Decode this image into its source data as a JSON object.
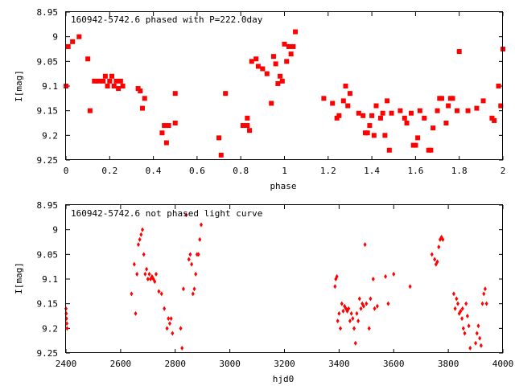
{
  "marker_color": "#ff0000",
  "chart_data": [
    {
      "type": "scatter",
      "title": "160942-5742.6 phased with P=222.0day",
      "xlabel": "phase",
      "ylabel": "I[mag]",
      "xlim": [
        0,
        2
      ],
      "ylim": [
        8.95,
        9.25
      ],
      "y_inverted": true,
      "xticks": [
        "0",
        "0.2",
        "0.4",
        "0.6",
        "0.8",
        "1",
        "1.2",
        "1.4",
        "1.6",
        "1.8",
        "2"
      ],
      "yticks": [
        "8.95",
        "9",
        "9.05",
        "9.1",
        "9.15",
        "9.2",
        "9.25"
      ],
      "marker": "filled square",
      "grid": false,
      "points": [
        [
          0.0,
          9.1
        ],
        [
          0.01,
          9.02
        ],
        [
          0.03,
          9.01
        ],
        [
          0.06,
          9.0
        ],
        [
          0.1,
          9.045
        ],
        [
          0.11,
          9.15
        ],
        [
          0.13,
          9.09
        ],
        [
          0.15,
          9.09
        ],
        [
          0.17,
          9.09
        ],
        [
          0.18,
          9.08
        ],
        [
          0.19,
          9.1
        ],
        [
          0.2,
          9.09
        ],
        [
          0.21,
          9.08
        ],
        [
          0.22,
          9.1
        ],
        [
          0.23,
          9.09
        ],
        [
          0.24,
          9.105
        ],
        [
          0.25,
          9.09
        ],
        [
          0.26,
          9.1
        ],
        [
          0.33,
          9.105
        ],
        [
          0.34,
          9.11
        ],
        [
          0.35,
          9.145
        ],
        [
          0.36,
          9.125
        ],
        [
          0.44,
          9.195
        ],
        [
          0.45,
          9.18
        ],
        [
          0.46,
          9.215
        ],
        [
          0.47,
          9.18
        ],
        [
          0.5,
          9.115
        ],
        [
          0.5,
          9.175
        ],
        [
          0.7,
          9.205
        ],
        [
          0.71,
          9.24
        ],
        [
          0.73,
          9.115
        ],
        [
          0.81,
          9.18
        ],
        [
          0.83,
          9.165
        ],
        [
          0.83,
          9.18
        ],
        [
          0.84,
          9.19
        ],
        [
          0.85,
          9.05
        ],
        [
          0.87,
          9.045
        ],
        [
          0.88,
          9.06
        ],
        [
          0.9,
          9.065
        ],
        [
          0.92,
          9.075
        ],
        [
          0.94,
          9.135
        ],
        [
          0.95,
          9.04
        ],
        [
          0.96,
          9.055
        ],
        [
          0.97,
          9.095
        ],
        [
          0.98,
          9.08
        ],
        [
          0.99,
          9.09
        ],
        [
          1.0,
          9.015
        ],
        [
          1.01,
          9.05
        ],
        [
          1.02,
          9.02
        ],
        [
          1.03,
          9.035
        ],
        [
          1.04,
          9.02
        ],
        [
          1.05,
          8.99
        ],
        [
          1.18,
          9.125
        ],
        [
          1.22,
          9.135
        ],
        [
          1.24,
          9.165
        ],
        [
          1.25,
          9.16
        ],
        [
          1.27,
          9.13
        ],
        [
          1.28,
          9.1
        ],
        [
          1.29,
          9.14
        ],
        [
          1.3,
          9.115
        ],
        [
          1.34,
          9.155
        ],
        [
          1.36,
          9.16
        ],
        [
          1.37,
          9.195
        ],
        [
          1.38,
          9.195
        ],
        [
          1.39,
          9.18
        ],
        [
          1.4,
          9.16
        ],
        [
          1.41,
          9.2
        ],
        [
          1.42,
          9.14
        ],
        [
          1.44,
          9.165
        ],
        [
          1.45,
          9.155
        ],
        [
          1.46,
          9.2
        ],
        [
          1.47,
          9.13
        ],
        [
          1.48,
          9.23
        ],
        [
          1.49,
          9.155
        ],
        [
          1.53,
          9.15
        ],
        [
          1.55,
          9.165
        ],
        [
          1.56,
          9.175
        ],
        [
          1.58,
          9.155
        ],
        [
          1.59,
          9.22
        ],
        [
          1.6,
          9.22
        ],
        [
          1.61,
          9.205
        ],
        [
          1.62,
          9.15
        ],
        [
          1.64,
          9.165
        ],
        [
          1.66,
          9.23
        ],
        [
          1.67,
          9.23
        ],
        [
          1.68,
          9.185
        ],
        [
          1.7,
          9.15
        ],
        [
          1.71,
          9.125
        ],
        [
          1.72,
          9.125
        ],
        [
          1.74,
          9.175
        ],
        [
          1.75,
          9.14
        ],
        [
          1.76,
          9.125
        ],
        [
          1.77,
          9.125
        ],
        [
          1.79,
          9.15
        ],
        [
          1.8,
          9.03
        ],
        [
          1.84,
          9.15
        ],
        [
          1.88,
          9.145
        ],
        [
          1.91,
          9.13
        ],
        [
          1.95,
          9.165
        ],
        [
          1.96,
          9.17
        ],
        [
          1.98,
          9.1
        ],
        [
          1.99,
          9.14
        ],
        [
          2.0,
          9.025
        ]
      ]
    },
    {
      "type": "scatter",
      "title": "160942-5742.6 not phased light curve",
      "xlabel": "hjd0",
      "ylabel": "I[mag]",
      "xlim": [
        2400,
        4000
      ],
      "ylim": [
        8.95,
        9.25
      ],
      "y_inverted": true,
      "xticks": [
        "2400",
        "2600",
        "2800",
        "3000",
        "3200",
        "3400",
        "3600",
        "3800",
        "4000"
      ],
      "yticks": [
        "8.95",
        "9",
        "9.05",
        "9.1",
        "9.15",
        "9.2",
        "9.25"
      ],
      "marker": "small diamond",
      "grid": false,
      "points": [
        [
          2400,
          9.16
        ],
        [
          2401,
          9.17
        ],
        [
          2402,
          9.18
        ],
        [
          2403,
          9.19
        ],
        [
          2404,
          9.2
        ],
        [
          2640,
          9.13
        ],
        [
          2650,
          9.07
        ],
        [
          2655,
          9.17
        ],
        [
          2660,
          9.09
        ],
        [
          2665,
          9.03
        ],
        [
          2670,
          9.02
        ],
        [
          2675,
          9.01
        ],
        [
          2680,
          9.0
        ],
        [
          2685,
          9.05
        ],
        [
          2690,
          9.09
        ],
        [
          2695,
          9.08
        ],
        [
          2700,
          9.1
        ],
        [
          2705,
          9.09
        ],
        [
          2710,
          9.1
        ],
        [
          2715,
          9.095
        ],
        [
          2720,
          9.1
        ],
        [
          2725,
          9.105
        ],
        [
          2730,
          9.09
        ],
        [
          2740,
          9.125
        ],
        [
          2750,
          9.13
        ],
        [
          2760,
          9.16
        ],
        [
          2770,
          9.2
        ],
        [
          2775,
          9.18
        ],
        [
          2780,
          9.19
        ],
        [
          2785,
          9.18
        ],
        [
          2790,
          9.21
        ],
        [
          2820,
          9.2
        ],
        [
          2825,
          9.24
        ],
        [
          2830,
          9.12
        ],
        [
          2840,
          8.97
        ],
        [
          2850,
          9.06
        ],
        [
          2855,
          9.05
        ],
        [
          2860,
          9.07
        ],
        [
          2865,
          9.13
        ],
        [
          2870,
          9.12
        ],
        [
          2875,
          9.09
        ],
        [
          2880,
          9.05
        ],
        [
          2885,
          9.05
        ],
        [
          2890,
          9.02
        ],
        [
          2895,
          8.99
        ],
        [
          3385,
          9.115
        ],
        [
          3388,
          9.1
        ],
        [
          3392,
          9.095
        ],
        [
          3395,
          9.185
        ],
        [
          3400,
          9.17
        ],
        [
          3405,
          9.2
        ],
        [
          3410,
          9.15
        ],
        [
          3415,
          9.165
        ],
        [
          3420,
          9.155
        ],
        [
          3425,
          9.16
        ],
        [
          3430,
          9.165
        ],
        [
          3435,
          9.16
        ],
        [
          3440,
          9.185
        ],
        [
          3445,
          9.17
        ],
        [
          3450,
          9.18
        ],
        [
          3455,
          9.2
        ],
        [
          3460,
          9.23
        ],
        [
          3465,
          9.17
        ],
        [
          3470,
          9.185
        ],
        [
          3475,
          9.14
        ],
        [
          3480,
          9.16
        ],
        [
          3485,
          9.15
        ],
        [
          3490,
          9.155
        ],
        [
          3495,
          9.03
        ],
        [
          3500,
          9.15
        ],
        [
          3510,
          9.2
        ],
        [
          3515,
          9.14
        ],
        [
          3525,
          9.1
        ],
        [
          3530,
          9.16
        ],
        [
          3540,
          9.155
        ],
        [
          3570,
          9.095
        ],
        [
          3580,
          9.15
        ],
        [
          3600,
          9.09
        ],
        [
          3660,
          9.115
        ],
        [
          3740,
          9.05
        ],
        [
          3750,
          9.06
        ],
        [
          3755,
          9.07
        ],
        [
          3760,
          9.065
        ],
        [
          3765,
          9.035
        ],
        [
          3770,
          9.02
        ],
        [
          3775,
          9.015
        ],
        [
          3780,
          9.02
        ],
        [
          3820,
          9.13
        ],
        [
          3825,
          9.16
        ],
        [
          3830,
          9.14
        ],
        [
          3835,
          9.15
        ],
        [
          3840,
          9.17
        ],
        [
          3845,
          9.165
        ],
        [
          3850,
          9.18
        ],
        [
          3852,
          9.16
        ],
        [
          3855,
          9.2
        ],
        [
          3860,
          9.21
        ],
        [
          3865,
          9.15
        ],
        [
          3870,
          9.175
        ],
        [
          3875,
          9.195
        ],
        [
          3880,
          9.24
        ],
        [
          3900,
          9.23
        ],
        [
          3905,
          9.21
        ],
        [
          3910,
          9.195
        ],
        [
          3915,
          9.22
        ],
        [
          3920,
          9.235
        ],
        [
          3925,
          9.15
        ],
        [
          3930,
          9.13
        ],
        [
          3935,
          9.12
        ],
        [
          3940,
          9.15
        ]
      ]
    }
  ]
}
